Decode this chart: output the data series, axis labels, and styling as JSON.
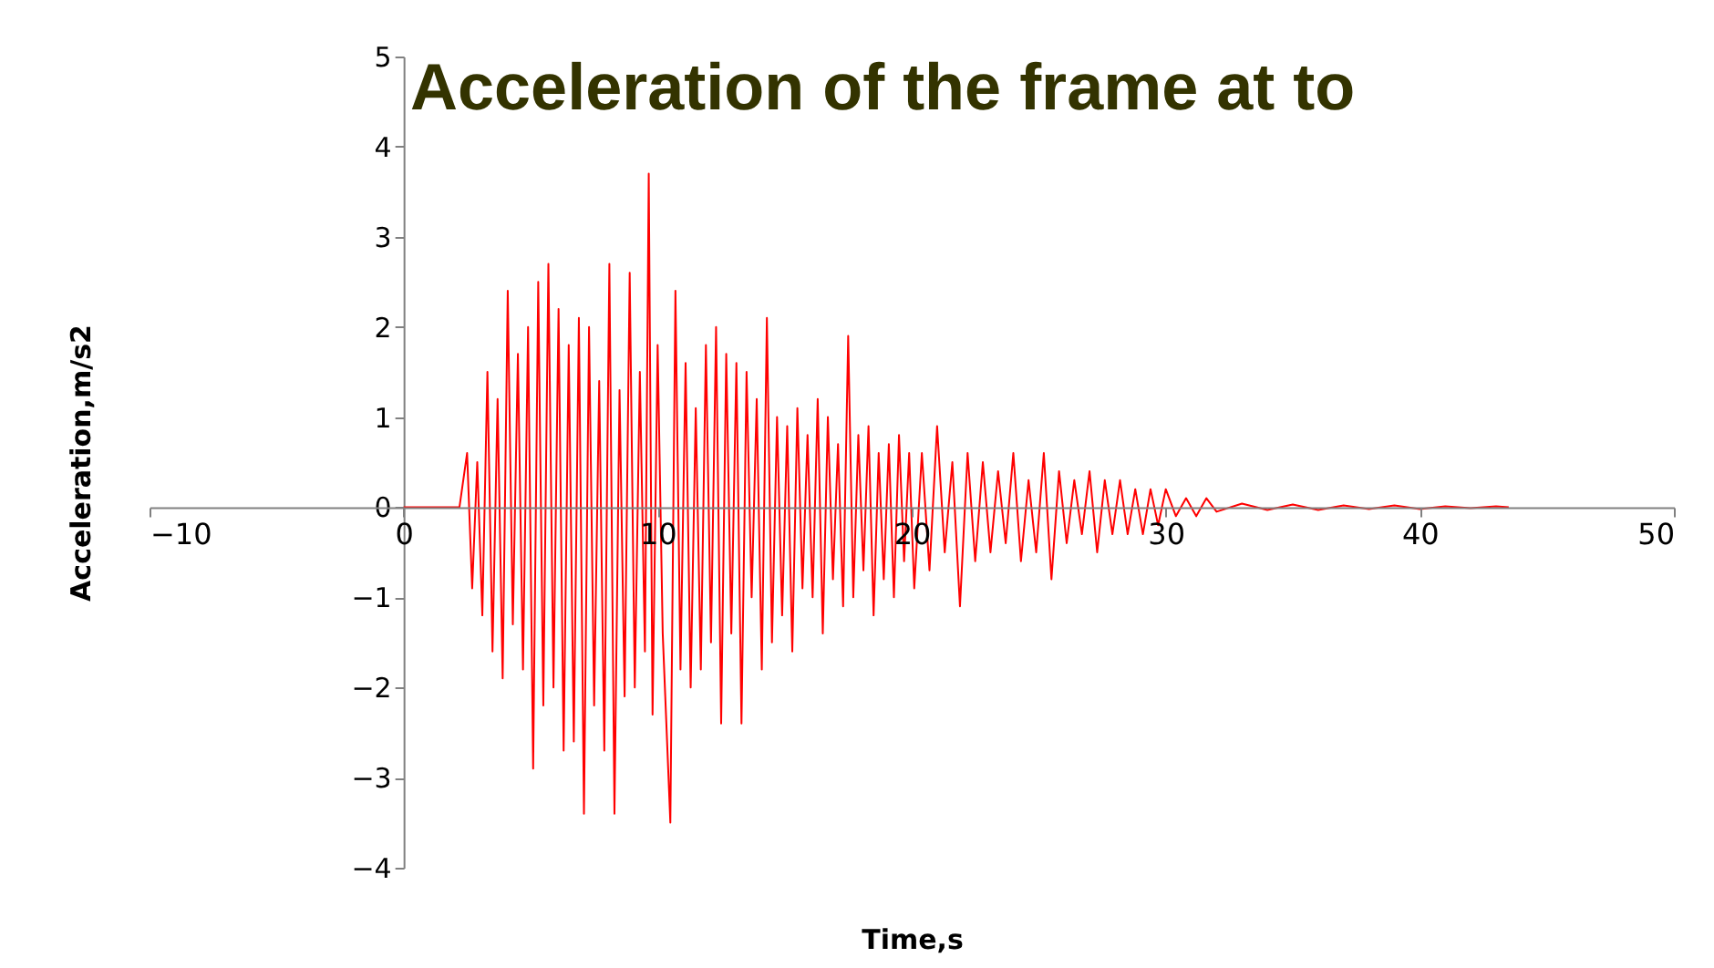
{
  "chart_data": {
    "type": "line",
    "title": "Acceleration of the frame at to",
    "xlabel": "Time,s",
    "ylabel": "Acceleration,m/s2",
    "xlim": [
      -10,
      50
    ],
    "xticks": [
      -10,
      0,
      10,
      20,
      30,
      40,
      50
    ],
    "ylim": [
      -4,
      5
    ],
    "yticks": [
      -4,
      -3,
      -2,
      -1,
      0,
      1,
      2,
      3,
      4,
      5
    ],
    "grid": false,
    "marker": "none",
    "line_style": "solid",
    "series": [
      {
        "color": "#ff0000",
        "x": [
          0,
          2.2,
          2.5,
          2.7,
          2.9,
          3.1,
          3.3,
          3.5,
          3.7,
          3.9,
          4.1,
          4.3,
          4.5,
          4.7,
          4.9,
          5.1,
          5.3,
          5.5,
          5.7,
          5.9,
          6.1,
          6.3,
          6.5,
          6.7,
          6.9,
          7.1,
          7.3,
          7.5,
          7.7,
          7.9,
          8.1,
          8.3,
          8.5,
          8.7,
          8.9,
          9.1,
          9.3,
          9.5,
          9.65,
          9.8,
          10.0,
          10.2,
          10.5,
          10.7,
          10.9,
          11.1,
          11.3,
          11.5,
          11.7,
          11.9,
          12.1,
          12.3,
          12.5,
          12.7,
          12.9,
          13.1,
          13.3,
          13.5,
          13.7,
          13.9,
          14.1,
          14.3,
          14.5,
          14.7,
          14.9,
          15.1,
          15.3,
          15.5,
          15.7,
          15.9,
          16.1,
          16.3,
          16.5,
          16.7,
          16.9,
          17.1,
          17.3,
          17.5,
          17.7,
          17.9,
          18.1,
          18.3,
          18.5,
          18.7,
          18.9,
          19.1,
          19.3,
          19.5,
          19.7,
          19.9,
          20.1,
          20.4,
          20.7,
          21.0,
          21.3,
          21.6,
          21.9,
          22.2,
          22.5,
          22.8,
          23.1,
          23.4,
          23.7,
          24.0,
          24.3,
          24.6,
          24.9,
          25.2,
          25.5,
          25.8,
          26.1,
          26.4,
          26.7,
          27.0,
          27.3,
          27.6,
          27.9,
          28.2,
          28.5,
          28.8,
          29.1,
          29.4,
          29.7,
          30.0,
          30.4,
          30.8,
          31.2,
          31.6,
          32.0,
          33,
          34,
          35,
          36,
          37,
          38,
          39,
          40,
          41,
          42,
          43,
          43.5
        ],
        "values": [
          0,
          0,
          0.6,
          -0.9,
          0.5,
          -1.2,
          1.5,
          -1.6,
          1.2,
          -1.9,
          2.4,
          -1.3,
          1.7,
          -1.8,
          2.0,
          -2.9,
          2.5,
          -2.2,
          2.7,
          -2.0,
          2.2,
          -2.7,
          1.8,
          -2.6,
          2.1,
          -3.4,
          2.0,
          -2.2,
          1.4,
          -2.7,
          2.7,
          -3.4,
          1.3,
          -2.1,
          2.6,
          -2.0,
          1.5,
          -1.6,
          3.7,
          -2.3,
          1.8,
          -1.4,
          -3.5,
          2.4,
          -1.8,
          1.6,
          -2.0,
          1.1,
          -1.8,
          1.8,
          -1.5,
          2.0,
          -2.4,
          1.7,
          -1.4,
          1.6,
          -2.4,
          1.5,
          -1.0,
          1.2,
          -1.8,
          2.1,
          -1.5,
          1.0,
          -1.2,
          0.9,
          -1.6,
          1.1,
          -0.9,
          0.8,
          -1.0,
          1.2,
          -1.4,
          1.0,
          -0.8,
          0.7,
          -1.1,
          1.9,
          -1.0,
          0.8,
          -0.7,
          0.9,
          -1.2,
          0.6,
          -0.8,
          0.7,
          -1.0,
          0.8,
          -0.6,
          0.6,
          -0.9,
          0.6,
          -0.7,
          0.9,
          -0.5,
          0.5,
          -1.1,
          0.6,
          -0.6,
          0.5,
          -0.5,
          0.4,
          -0.4,
          0.6,
          -0.6,
          0.3,
          -0.5,
          0.6,
          -0.8,
          0.4,
          -0.4,
          0.3,
          -0.3,
          0.4,
          -0.5,
          0.3,
          -0.3,
          0.3,
          -0.3,
          0.2,
          -0.3,
          0.2,
          -0.2,
          0.2,
          -0.1,
          0.1,
          -0.1,
          0.1,
          -0.05,
          0.04,
          -0.03,
          0.03,
          -0.03,
          0.02,
          -0.02,
          0.02,
          -0.02,
          0.01,
          -0.01,
          0.01,
          0
        ]
      }
    ]
  }
}
